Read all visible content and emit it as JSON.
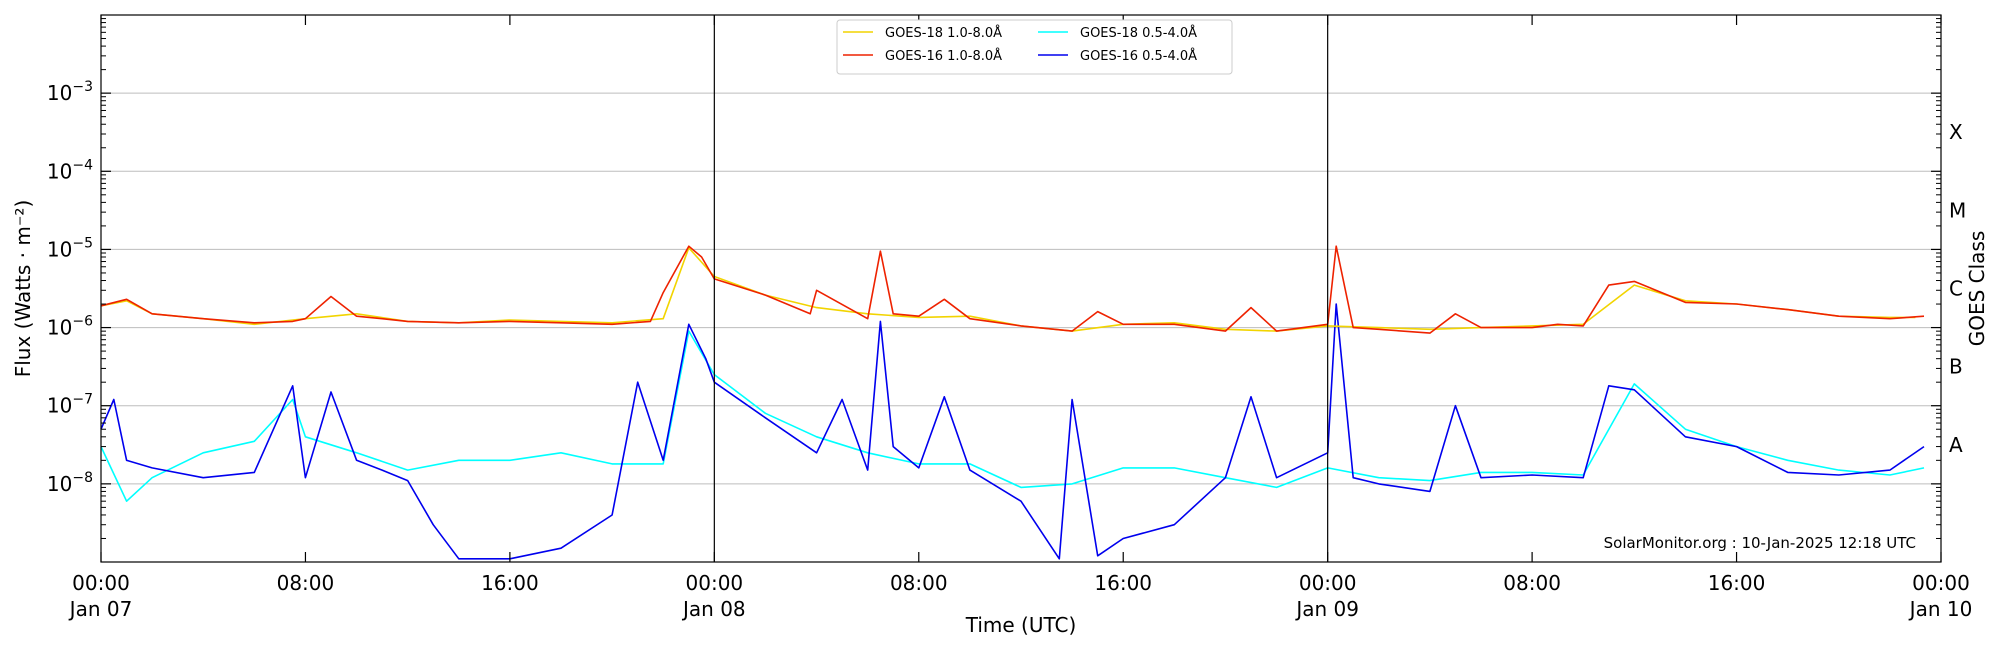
{
  "chart_data": {
    "type": "line",
    "xlabel": "Time (UTC)",
    "ylabel": "Flux (Watts · m⁻²)",
    "y2label": "GOES Class",
    "y_scale": "log",
    "ylim": [
      1e-09,
      0.01
    ],
    "grid": "horizontal",
    "legend_position": "top-center",
    "credit": "SolarMonitor.org : 10-Jan-2025 12:18 UTC",
    "xlim": [
      "2025-01-07T00:00",
      "2025-01-10T00:00"
    ],
    "x_ticks": [
      {
        "t": "2025-01-07T00:00",
        "line1": "00:00",
        "line2": "Jan 07"
      },
      {
        "t": "2025-01-07T08:00",
        "line1": "08:00",
        "line2": ""
      },
      {
        "t": "2025-01-07T16:00",
        "line1": "16:00",
        "line2": ""
      },
      {
        "t": "2025-01-08T00:00",
        "line1": "00:00",
        "line2": "Jan 08"
      },
      {
        "t": "2025-01-08T08:00",
        "line1": "08:00",
        "line2": ""
      },
      {
        "t": "2025-01-08T16:00",
        "line1": "16:00",
        "line2": ""
      },
      {
        "t": "2025-01-09T00:00",
        "line1": "00:00",
        "line2": "Jan 09"
      },
      {
        "t": "2025-01-09T08:00",
        "line1": "08:00",
        "line2": ""
      },
      {
        "t": "2025-01-09T16:00",
        "line1": "16:00",
        "line2": ""
      },
      {
        "t": "2025-01-10T00:00",
        "line1": "00:00",
        "line2": "Jan 10"
      }
    ],
    "day_boundaries": [
      "2025-01-08T00:00",
      "2025-01-09T00:00"
    ],
    "y_ticks": [
      {
        "v": 1e-08,
        "base": "10",
        "exp": "−8"
      },
      {
        "v": 1e-07,
        "base": "10",
        "exp": "−7"
      },
      {
        "v": 1e-06,
        "base": "10",
        "exp": "−6"
      },
      {
        "v": 1e-05,
        "base": "10",
        "exp": "−5"
      },
      {
        "v": 0.0001,
        "base": "10",
        "exp": "−4"
      },
      {
        "v": 0.001,
        "base": "10",
        "exp": "−3"
      }
    ],
    "goes_classes": [
      {
        "label": "A",
        "v": 1e-08
      },
      {
        "label": "B",
        "v": 1e-07
      },
      {
        "label": "C",
        "v": 1e-06
      },
      {
        "label": "M",
        "v": 1e-05
      },
      {
        "label": "X",
        "v": 0.0001
      }
    ],
    "series": [
      {
        "name": "GOES-18 1.0-8.0Å",
        "color": "#f2d400",
        "x": [
          "2025-01-07T00:00",
          "2025-01-07T01:00",
          "2025-01-07T02:00",
          "2025-01-07T04:00",
          "2025-01-07T06:00",
          "2025-01-07T08:00",
          "2025-01-07T10:00",
          "2025-01-07T12:00",
          "2025-01-07T14:00",
          "2025-01-07T16:00",
          "2025-01-07T18:00",
          "2025-01-07T20:00",
          "2025-01-07T22:00",
          "2025-01-07T23:00",
          "2025-01-08T00:00",
          "2025-01-08T02:00",
          "2025-01-08T04:00",
          "2025-01-08T06:00",
          "2025-01-08T08:00",
          "2025-01-08T10:00",
          "2025-01-08T12:00",
          "2025-01-08T14:00",
          "2025-01-08T16:00",
          "2025-01-08T18:00",
          "2025-01-08T20:00",
          "2025-01-08T22:00",
          "2025-01-09T00:00",
          "2025-01-09T02:00",
          "2025-01-09T04:00",
          "2025-01-09T06:00",
          "2025-01-09T08:00",
          "2025-01-09T10:00",
          "2025-01-09T12:00",
          "2025-01-09T14:00",
          "2025-01-09T16:00",
          "2025-01-09T18:00",
          "2025-01-09T20:00",
          "2025-01-09T22:00",
          "2025-01-09T23:00"
        ],
        "y": [
          1.9e-06,
          2.2e-06,
          1.5e-06,
          1.3e-06,
          1.1e-06,
          1.3e-06,
          1.5e-06,
          1.2e-06,
          1.15e-06,
          1.25e-06,
          1.2e-06,
          1.15e-06,
          1.3e-06,
          1.05e-05,
          4.5e-06,
          2.6e-06,
          1.8e-06,
          1.5e-06,
          1.35e-06,
          1.4e-06,
          1.05e-06,
          9e-07,
          1.1e-06,
          1.15e-06,
          9.5e-07,
          9e-07,
          1.05e-06,
          1e-06,
          9.5e-07,
          1e-06,
          1.05e-06,
          1.1e-06,
          3.5e-06,
          2.2e-06,
          2e-06,
          1.7e-06,
          1.4e-06,
          1.35e-06,
          1.35e-06
        ]
      },
      {
        "name": "GOES-16 1.0-8.0Å",
        "color": "#ee2200",
        "x": [
          "2025-01-07T00:00",
          "2025-01-07T01:00",
          "2025-01-07T02:00",
          "2025-01-07T04:00",
          "2025-01-07T06:00",
          "2025-01-07T07:30",
          "2025-01-07T08:00",
          "2025-01-07T09:00",
          "2025-01-07T10:00",
          "2025-01-07T11:00",
          "2025-01-07T12:00",
          "2025-01-07T14:00",
          "2025-01-07T16:00",
          "2025-01-07T18:00",
          "2025-01-07T20:00",
          "2025-01-07T21:30",
          "2025-01-07T22:00",
          "2025-01-07T23:00",
          "2025-01-07T23:30",
          "2025-01-08T00:00",
          "2025-01-08T02:00",
          "2025-01-08T03:45",
          "2025-01-08T04:00",
          "2025-01-08T06:00",
          "2025-01-08T06:30",
          "2025-01-08T07:00",
          "2025-01-08T08:00",
          "2025-01-08T09:00",
          "2025-01-08T10:00",
          "2025-01-08T12:00",
          "2025-01-08T14:00",
          "2025-01-08T15:00",
          "2025-01-08T16:00",
          "2025-01-08T18:00",
          "2025-01-08T20:00",
          "2025-01-08T21:00",
          "2025-01-08T22:00",
          "2025-01-09T00:00",
          "2025-01-09T00:20",
          "2025-01-09T01:00",
          "2025-01-09T02:00",
          "2025-01-09T04:00",
          "2025-01-09T05:00",
          "2025-01-09T06:00",
          "2025-01-09T08:00",
          "2025-01-09T09:00",
          "2025-01-09T10:00",
          "2025-01-09T11:00",
          "2025-01-09T12:00",
          "2025-01-09T14:00",
          "2025-01-09T16:00",
          "2025-01-09T18:00",
          "2025-01-09T20:00",
          "2025-01-09T22:00",
          "2025-01-09T23:20"
        ],
        "y": [
          1.9e-06,
          2.3e-06,
          1.5e-06,
          1.3e-06,
          1.15e-06,
          1.2e-06,
          1.3e-06,
          2.5e-06,
          1.4e-06,
          1.3e-06,
          1.2e-06,
          1.15e-06,
          1.2e-06,
          1.15e-06,
          1.1e-06,
          1.2e-06,
          2.8e-06,
          1.1e-05,
          8e-06,
          4.2e-06,
          2.6e-06,
          1.5e-06,
          3e-06,
          1.3e-06,
          9.5e-06,
          1.5e-06,
          1.4e-06,
          2.3e-06,
          1.3e-06,
          1.05e-06,
          9e-07,
          1.6e-06,
          1.1e-06,
          1.1e-06,
          9e-07,
          1.8e-06,
          9e-07,
          1.1e-06,
          1.1e-05,
          1e-06,
          9.5e-07,
          8.5e-07,
          1.5e-06,
          1e-06,
          1e-06,
          1.1e-06,
          1.05e-06,
          3.5e-06,
          3.9e-06,
          2.1e-06,
          2e-06,
          1.7e-06,
          1.4e-06,
          1.3e-06,
          1.4e-06
        ]
      },
      {
        "name": "GOES-18 0.5-4.0Å",
        "color": "#00ffff",
        "x": [
          "2025-01-07T00:00",
          "2025-01-07T01:00",
          "2025-01-07T02:00",
          "2025-01-07T04:00",
          "2025-01-07T06:00",
          "2025-01-07T07:30",
          "2025-01-07T08:00",
          "2025-01-07T10:00",
          "2025-01-07T12:00",
          "2025-01-07T14:00",
          "2025-01-07T16:00",
          "2025-01-07T18:00",
          "2025-01-07T20:00",
          "2025-01-07T22:00",
          "2025-01-07T23:00",
          "2025-01-08T00:00",
          "2025-01-08T02:00",
          "2025-01-08T04:00",
          "2025-01-08T06:00",
          "2025-01-08T08:00",
          "2025-01-08T10:00",
          "2025-01-08T12:00",
          "2025-01-08T14:00",
          "2025-01-08T16:00",
          "2025-01-08T18:00",
          "2025-01-08T20:00",
          "2025-01-08T22:00",
          "2025-01-09T00:00",
          "2025-01-09T02:00",
          "2025-01-09T04:00",
          "2025-01-09T06:00",
          "2025-01-09T08:00",
          "2025-01-09T10:00",
          "2025-01-09T12:00",
          "2025-01-09T14:00",
          "2025-01-09T16:00",
          "2025-01-09T18:00",
          "2025-01-09T20:00",
          "2025-01-09T22:00",
          "2025-01-09T23:20"
        ],
        "y": [
          3e-08,
          6e-09,
          1.2e-08,
          2.5e-08,
          3.5e-08,
          1.2e-07,
          4e-08,
          2.5e-08,
          1.5e-08,
          2e-08,
          2e-08,
          2.5e-08,
          1.8e-08,
          1.8e-08,
          9e-07,
          2.5e-07,
          8e-08,
          4e-08,
          2.5e-08,
          1.8e-08,
          1.8e-08,
          9e-09,
          1e-08,
          1.6e-08,
          1.6e-08,
          1.2e-08,
          9e-09,
          1.6e-08,
          1.2e-08,
          1.1e-08,
          1.4e-08,
          1.4e-08,
          1.3e-08,
          1.9e-07,
          5e-08,
          3e-08,
          2e-08,
          1.5e-08,
          1.3e-08,
          1.6e-08
        ]
      },
      {
        "name": "GOES-16 0.5-4.0Å",
        "color": "#0000ee",
        "x": [
          "2025-01-07T00:00",
          "2025-01-07T00:30",
          "2025-01-07T01:00",
          "2025-01-07T02:00",
          "2025-01-07T04:00",
          "2025-01-07T06:00",
          "2025-01-07T07:30",
          "2025-01-07T08:00",
          "2025-01-07T09:00",
          "2025-01-07T10:00",
          "2025-01-07T11:00",
          "2025-01-07T12:00",
          "2025-01-07T13:00",
          "2025-01-07T14:00",
          "2025-01-07T16:00",
          "2025-01-07T18:00",
          "2025-01-07T20:00",
          "2025-01-07T21:00",
          "2025-01-07T22:00",
          "2025-01-07T23:00",
          "2025-01-07T23:40",
          "2025-01-08T00:00",
          "2025-01-08T02:00",
          "2025-01-08T04:00",
          "2025-01-08T05:00",
          "2025-01-08T06:00",
          "2025-01-08T06:30",
          "2025-01-08T07:00",
          "2025-01-08T08:00",
          "2025-01-08T09:00",
          "2025-01-08T10:00",
          "2025-01-08T12:00",
          "2025-01-08T13:30",
          "2025-01-08T14:00",
          "2025-01-08T15:00",
          "2025-01-08T16:00",
          "2025-01-08T18:00",
          "2025-01-08T20:00",
          "2025-01-08T21:00",
          "2025-01-08T22:00",
          "2025-01-09T00:00",
          "2025-01-09T00:20",
          "2025-01-09T01:00",
          "2025-01-09T02:00",
          "2025-01-09T04:00",
          "2025-01-09T05:00",
          "2025-01-09T06:00",
          "2025-01-09T08:00",
          "2025-01-09T10:00",
          "2025-01-09T11:00",
          "2025-01-09T12:00",
          "2025-01-09T14:00",
          "2025-01-09T16:00",
          "2025-01-09T18:00",
          "2025-01-09T20:00",
          "2025-01-09T22:00",
          "2025-01-09T23:20"
        ],
        "y": [
          5e-08,
          1.2e-07,
          2e-08,
          1.6e-08,
          1.2e-08,
          1.4e-08,
          1.8e-07,
          1.2e-08,
          1.5e-07,
          2e-08,
          1.5e-08,
          1.1e-08,
          3e-09,
          1.1e-09,
          1.1e-09,
          1.5e-09,
          4e-09,
          2e-07,
          2e-08,
          1.1e-06,
          4e-07,
          2e-07,
          7e-08,
          2.5e-08,
          1.2e-07,
          1.5e-08,
          1.2e-06,
          3e-08,
          1.6e-08,
          1.3e-07,
          1.5e-08,
          6e-09,
          1.1e-09,
          1.2e-07,
          1.2e-09,
          2e-09,
          3e-09,
          1.2e-08,
          1.3e-07,
          1.2e-08,
          2.5e-08,
          2e-06,
          1.2e-08,
          1e-08,
          8e-09,
          1e-07,
          1.2e-08,
          1.3e-08,
          1.2e-08,
          1.8e-07,
          1.6e-07,
          4e-08,
          3e-08,
          1.4e-08,
          1.3e-08,
          1.5e-08,
          3e-08
        ]
      }
    ]
  }
}
